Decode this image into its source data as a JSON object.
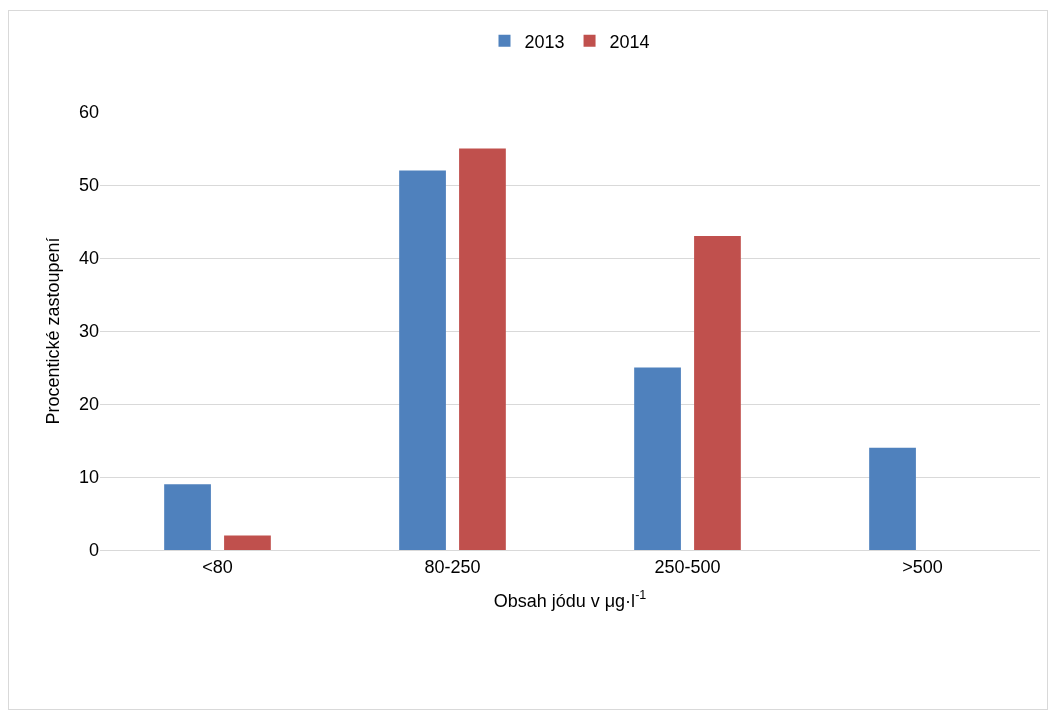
{
  "chart_data": {
    "type": "bar",
    "xlabel": "Obsah jódu v μg·l$^{-1}$",
    "ylabel": "Procentické zastoupení",
    "categories": [
      "<80",
      "80-250",
      "250-500",
      ">500"
    ],
    "series": [
      {
        "name": "2013",
        "color": "#4f81bd",
        "values": [
          9,
          52,
          25,
          14
        ]
      },
      {
        "name": "2014",
        "color": "#c0504d",
        "values": [
          2,
          55,
          43,
          0
        ]
      }
    ],
    "ylim": [
      0,
      60
    ],
    "yticks": [
      0,
      10,
      20,
      30,
      40,
      50,
      60
    ],
    "grid": "y",
    "legend": "top"
  }
}
